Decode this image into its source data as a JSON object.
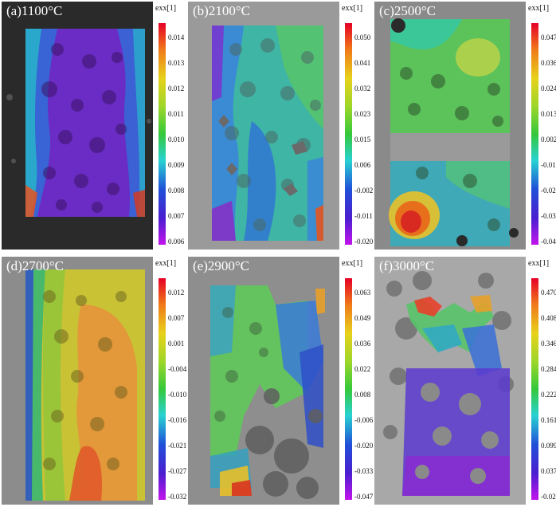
{
  "panels": [
    {
      "label": "(a)1100°C",
      "cbar_title": "exx[1]",
      "ticks": [
        "0.014",
        "0.013",
        "0.012",
        "0.011",
        "0.010",
        "0.009",
        "0.008",
        "0.007",
        "0.006"
      ]
    },
    {
      "label": "(b)2100°C",
      "cbar_title": "exx[1]",
      "ticks": [
        "0.050",
        "0.041",
        "0.032",
        "0.023",
        "0.015",
        "0.006",
        "-0.002",
        "-0.011",
        "-0.020"
      ]
    },
    {
      "label": "(c)2500°C",
      "cbar_title": "exx[1]",
      "ticks": [
        "0.047",
        "0.036",
        "0.024",
        "0.013",
        "0.002",
        "-0.010",
        "-0.021",
        "-0.033",
        "-0.044"
      ]
    },
    {
      "label": "(d)2700°C",
      "cbar_title": "exx[1]",
      "ticks": [
        "0.012",
        "0.007",
        "0.001",
        "-0.004",
        "-0.010",
        "-0.016",
        "-0.021",
        "-0.027",
        "-0.032"
      ]
    },
    {
      "label": "(e)2900°C",
      "cbar_title": "exx[1]",
      "ticks": [
        "0.063",
        "0.049",
        "0.036",
        "0.022",
        "0.008",
        "-0.006",
        "-0.020",
        "-0.033",
        "-0.047"
      ]
    },
    {
      "label": "(f)3000°C",
      "cbar_title": "exx[1]",
      "ticks": [
        "0.470",
        "0.408",
        "0.346",
        "0.284",
        "0.222",
        "0.161",
        "0.099",
        "0.037",
        "-0.025"
      ]
    }
  ],
  "colors": {
    "background": "#ffffff",
    "photo_bg": "#7a7a7a",
    "scale": [
      "#e60026",
      "#f07a1a",
      "#e7d21a",
      "#9ad62a",
      "#35c83a",
      "#28d2d2",
      "#2050d8",
      "#4b1ed0",
      "#c214ec"
    ]
  }
}
